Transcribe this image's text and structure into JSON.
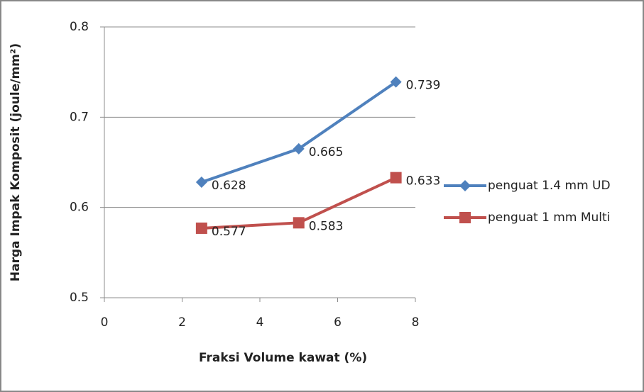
{
  "chart_data": {
    "type": "line",
    "x_label": "Fraksi Volume kawat (%)",
    "y_label": "Harga Impak Komposit (joule/mm²)",
    "x": [
      2.5,
      5,
      7.5
    ],
    "series": [
      {
        "name": "penguat 1.4 mm UD",
        "color": "#4f81bd",
        "marker": "diamond",
        "values": [
          0.628,
          0.665,
          0.739
        ]
      },
      {
        "name": "penguat 1 mm Multi",
        "color": "#c0504d",
        "marker": "square",
        "values": [
          0.577,
          0.583,
          0.633
        ]
      }
    ],
    "xlim": [
      0,
      8
    ],
    "xticks": [
      0,
      2,
      4,
      6,
      8
    ],
    "ylim": [
      0.5,
      0.8
    ],
    "yticks": [
      0.5,
      0.6,
      0.7,
      0.8
    ],
    "grid": true,
    "legend": "right"
  }
}
